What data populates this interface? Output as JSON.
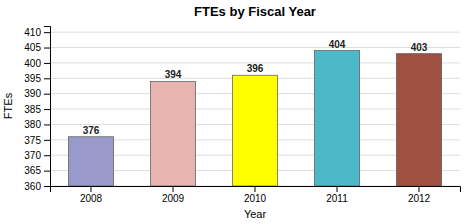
{
  "chart_data": {
    "type": "bar",
    "title": "FTEs by Fiscal Year",
    "xlabel": "Year",
    "ylabel": "FTEs",
    "categories": [
      "2008",
      "2009",
      "2010",
      "2011",
      "2012"
    ],
    "values": [
      376,
      394,
      396,
      404,
      403
    ],
    "colors": [
      "#9999cc",
      "#e8b4b0",
      "#ffff00",
      "#4db8c8",
      "#a05040"
    ],
    "ylim": [
      360,
      412
    ],
    "yticks": [
      360,
      365,
      370,
      375,
      380,
      385,
      390,
      395,
      400,
      405,
      410
    ],
    "grid": true,
    "data_labels": true
  }
}
